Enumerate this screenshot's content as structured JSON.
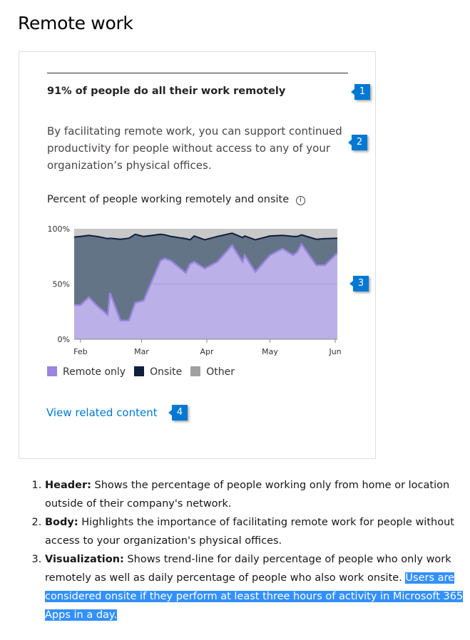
{
  "page_title": "Remote work",
  "card": {
    "headline": "91% of people do all their work remotely",
    "body": "By facilitating remote work, you can support continued productivity for people without access to any of your organization’s physical offices.",
    "chart_title": "Percent of people working remotely and onsite",
    "info_icon": "info-icon",
    "link": "View related content"
  },
  "badges": [
    "1",
    "2",
    "3",
    "4"
  ],
  "colors": {
    "remote_fill": "#bcb0e8",
    "remote_line": "#9a85e0",
    "onsite_fill": "#637487",
    "onsite_line": "#0f1e3c",
    "other_fill": "#c8c8c8",
    "accent": "#0078d4",
    "highlight": "#3390ff"
  },
  "chart_data": {
    "type": "area",
    "stacked": true,
    "ylim": [
      0,
      100
    ],
    "yticks": [
      "0%",
      "50%",
      "100%"
    ],
    "xticks": [
      "Feb",
      "Mar",
      "Apr",
      "May",
      "Jun"
    ],
    "xtick_dates": [
      "2020-02-01",
      "2020-03-01",
      "2020-04-01",
      "2020-05-01",
      "2020-06-01"
    ],
    "xlim": [
      "2020-01-29",
      "2020-06-02"
    ],
    "gridlines": true,
    "legend_placement": "bottom",
    "x": [
      "2020-01-29",
      "2020-02-01",
      "2020-02-05",
      "2020-02-09",
      "2020-02-14",
      "2020-02-15",
      "2020-02-20",
      "2020-02-24",
      "2020-02-27",
      "2020-03-02",
      "2020-03-10",
      "2020-03-12",
      "2020-03-15",
      "2020-03-22",
      "2020-03-24",
      "2020-03-26",
      "2020-03-31",
      "2020-04-06",
      "2020-04-13",
      "2020-04-18",
      "2020-04-19",
      "2020-04-24",
      "2020-05-01",
      "2020-05-07",
      "2020-05-12",
      "2020-05-14",
      "2020-05-16",
      "2020-05-23",
      "2020-05-27",
      "2020-06-02"
    ],
    "series": [
      {
        "name": "Remote only",
        "color": "#9a85e0",
        "values": [
          31,
          31,
          38,
          30,
          22,
          42,
          17,
          17,
          33,
          35,
          71,
          73,
          71,
          60,
          68,
          70,
          64,
          70,
          85,
          70,
          76,
          61,
          76,
          82,
          76,
          79,
          86,
          67,
          67,
          78
        ]
      },
      {
        "name": "Onsite",
        "color": "#0f1e3c",
        "values": [
          61.5,
          62,
          56,
          63,
          69,
          49.5,
          73.5,
          74.5,
          62,
          58,
          24,
          21.5,
          22,
          31,
          22,
          23.5,
          26,
          23,
          11,
          22,
          17.5,
          29,
          17.5,
          12,
          17,
          14,
          8.5,
          23.5,
          24,
          13.5
        ]
      },
      {
        "name": "Other",
        "color": "#a0a0a0",
        "values": "remainder to 100%"
      }
    ]
  },
  "notes": [
    {
      "label": "Header:",
      "text": " Shows the percentage of people working only from home or location outside of their company's network."
    },
    {
      "label": "Body:",
      "text": " Highlights the importance of facilitating remote work for people without access to your organization's physical offices."
    },
    {
      "label": "Visualization:",
      "text": " Shows trend-line for daily percentage of people who only work remotely as well as daily percentage of people who also work onsite. ",
      "highlighted": "Users are considered onsite if they perform at least three hours of activity in Microsoft 365 Apps in a day."
    }
  ]
}
